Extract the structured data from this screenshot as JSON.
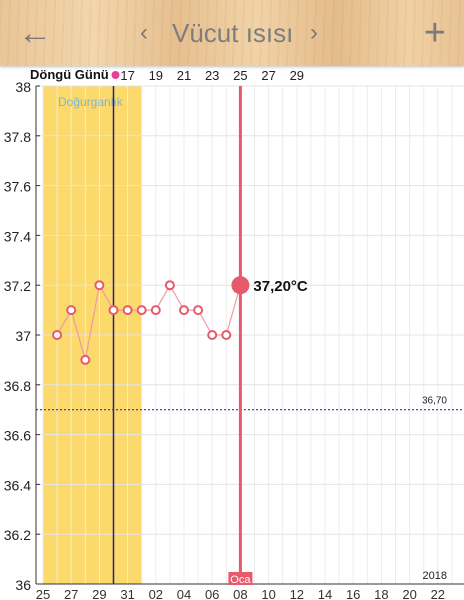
{
  "header": {
    "back_icon": "arrow-left-icon",
    "prev_icon": "chevron-left-icon",
    "next_icon": "chevron-right-icon",
    "add_icon": "plus-icon",
    "title": "Vücut ısısı"
  },
  "chart_data": {
    "type": "line",
    "cycle_label": "Döngü Günü",
    "cycle_days": [
      "17",
      "19",
      "21",
      "23",
      "25",
      "27",
      "29"
    ],
    "y_ticks": [
      "38",
      "37.8",
      "37.6",
      "37.4",
      "37.2",
      "37",
      "36.8",
      "36.6",
      "36.4",
      "36.2",
      "36"
    ],
    "ylim": [
      36,
      38
    ],
    "x_ticks": [
      "25",
      "27",
      "29",
      "31",
      "02",
      "04",
      "06",
      "08",
      "10",
      "12",
      "14",
      "16",
      "18",
      "20",
      "22"
    ],
    "fertility_label": "Doğurganlık",
    "fertility_range": [
      "25",
      "01"
    ],
    "ovulation_day": "30",
    "threshold": 36.7,
    "threshold_label": "36,70",
    "selected_label": "37,20°C",
    "selected_value": 37.2,
    "month_marker": "Oca",
    "year": "2018",
    "series": [
      {
        "values": [
          37.0,
          37.1,
          36.9,
          37.2,
          37.1,
          37.1,
          37.1,
          37.1,
          37.2,
          37.1,
          37.1,
          37.0,
          37.0,
          37.2
        ]
      }
    ],
    "colors": {
      "line": "#e75a6b",
      "fertile_band": "#fbd96b",
      "ovulation_line": "#25208a",
      "threshold": "#3d2fb0",
      "cycle_dot": "#e83f98"
    }
  }
}
